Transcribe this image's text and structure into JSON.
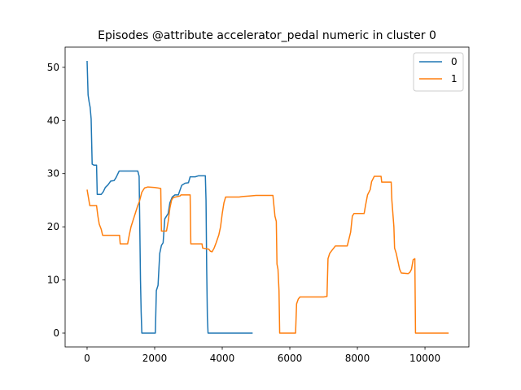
{
  "chart_data": {
    "type": "line",
    "title": "Episodes @attribute accelerator_pedal numeric in cluster 0",
    "xlabel": "",
    "ylabel": "",
    "xlim": [
      -650,
      11300
    ],
    "ylim": [
      -2.6,
      53.8
    ],
    "xticks": [
      0,
      2000,
      4000,
      6000,
      8000,
      10000
    ],
    "xtick_labels": [
      "0",
      "2000",
      "4000",
      "6000",
      "8000",
      "10000"
    ],
    "yticks": [
      0,
      10,
      20,
      30,
      40,
      50
    ],
    "ytick_labels": [
      "0",
      "10",
      "20",
      "30",
      "40",
      "50"
    ],
    "grid": false,
    "legend_position": "top-right",
    "series": [
      {
        "name": "0",
        "color": "#1f77b4",
        "points": [
          [
            0,
            51.2
          ],
          [
            30,
            44.8
          ],
          [
            60,
            43.5
          ],
          [
            90,
            42.5
          ],
          [
            120,
            40.3
          ],
          [
            150,
            31.8
          ],
          [
            200,
            31.6
          ],
          [
            280,
            31.6
          ],
          [
            300,
            26.1
          ],
          [
            420,
            26.1
          ],
          [
            480,
            26.6
          ],
          [
            540,
            27.4
          ],
          [
            620,
            27.9
          ],
          [
            700,
            28.6
          ],
          [
            800,
            28.7
          ],
          [
            860,
            29.3
          ],
          [
            950,
            30.5
          ],
          [
            1100,
            30.5
          ],
          [
            1500,
            30.5
          ],
          [
            1540,
            29.5
          ],
          [
            1560,
            20.0
          ],
          [
            1580,
            10.0
          ],
          [
            1600,
            4.0
          ],
          [
            1620,
            0
          ],
          [
            1800,
            0
          ],
          [
            2020,
            0
          ],
          [
            2050,
            8.0
          ],
          [
            2100,
            9.0
          ],
          [
            2150,
            15.0
          ],
          [
            2200,
            16.5
          ],
          [
            2250,
            17.0
          ],
          [
            2300,
            21.5
          ],
          [
            2350,
            22.0
          ],
          [
            2400,
            22.5
          ],
          [
            2450,
            24.5
          ],
          [
            2520,
            25.6
          ],
          [
            2600,
            26.0
          ],
          [
            2700,
            26.0
          ],
          [
            2800,
            27.8
          ],
          [
            2900,
            28.2
          ],
          [
            3000,
            28.3
          ],
          [
            3050,
            29.4
          ],
          [
            3200,
            29.4
          ],
          [
            3300,
            29.6
          ],
          [
            3500,
            29.6
          ],
          [
            3520,
            25.0
          ],
          [
            3540,
            12.0
          ],
          [
            3560,
            3.0
          ],
          [
            3580,
            0
          ],
          [
            4000,
            0
          ],
          [
            4500,
            0
          ],
          [
            4900,
            0
          ]
        ]
      },
      {
        "name": "1",
        "color": "#ff7f0e",
        "points": [
          [
            0,
            27.0
          ],
          [
            40,
            25.5
          ],
          [
            80,
            24.0
          ],
          [
            200,
            24.0
          ],
          [
            280,
            24.0
          ],
          [
            320,
            22.0
          ],
          [
            360,
            20.5
          ],
          [
            420,
            19.5
          ],
          [
            460,
            18.4
          ],
          [
            600,
            18.4
          ],
          [
            900,
            18.4
          ],
          [
            960,
            18.4
          ],
          [
            980,
            16.8
          ],
          [
            1200,
            16.8
          ],
          [
            1250,
            18.5
          ],
          [
            1300,
            20.0
          ],
          [
            1350,
            21.0
          ],
          [
            1400,
            22.0
          ],
          [
            1450,
            23.0
          ],
          [
            1500,
            24.0
          ],
          [
            1550,
            24.8
          ],
          [
            1620,
            26.5
          ],
          [
            1700,
            27.3
          ],
          [
            1800,
            27.5
          ],
          [
            2000,
            27.4
          ],
          [
            2100,
            27.3
          ],
          [
            2180,
            27.2
          ],
          [
            2200,
            19.2
          ],
          [
            2350,
            19.2
          ],
          [
            2400,
            21.0
          ],
          [
            2450,
            23.5
          ],
          [
            2500,
            25.0
          ],
          [
            2550,
            25.5
          ],
          [
            2750,
            25.8
          ],
          [
            2780,
            26.0
          ],
          [
            3050,
            26.0
          ],
          [
            3070,
            16.8
          ],
          [
            3400,
            16.8
          ],
          [
            3420,
            16.0
          ],
          [
            3600,
            15.8
          ],
          [
            3650,
            15.4
          ],
          [
            3700,
            15.3
          ],
          [
            3760,
            16.0
          ],
          [
            3820,
            17.0
          ],
          [
            3900,
            18.5
          ],
          [
            3950,
            20.0
          ],
          [
            4000,
            22.5
          ],
          [
            4050,
            24.5
          ],
          [
            4100,
            25.6
          ],
          [
            4500,
            25.6
          ],
          [
            4600,
            25.7
          ],
          [
            4800,
            25.8
          ],
          [
            5000,
            25.9
          ],
          [
            5500,
            25.9
          ],
          [
            5560,
            22.0
          ],
          [
            5600,
            21.0
          ],
          [
            5620,
            13.0
          ],
          [
            5650,
            12.0
          ],
          [
            5680,
            8.0
          ],
          [
            5700,
            0
          ],
          [
            6000,
            0
          ],
          [
            6170,
            0
          ],
          [
            6200,
            5.5
          ],
          [
            6250,
            6.4
          ],
          [
            6300,
            6.8
          ],
          [
            7000,
            6.8
          ],
          [
            7100,
            6.9
          ],
          [
            7130,
            14.0
          ],
          [
            7180,
            15.0
          ],
          [
            7250,
            15.6
          ],
          [
            7300,
            16.0
          ],
          [
            7350,
            16.4
          ],
          [
            7700,
            16.4
          ],
          [
            7800,
            19.0
          ],
          [
            7850,
            22.0
          ],
          [
            7900,
            22.5
          ],
          [
            8200,
            22.5
          ],
          [
            8240,
            24.0
          ],
          [
            8300,
            26.0
          ],
          [
            8380,
            27.0
          ],
          [
            8420,
            28.5
          ],
          [
            8500,
            29.5
          ],
          [
            8700,
            29.5
          ],
          [
            8720,
            28.4
          ],
          [
            9000,
            28.4
          ],
          [
            9020,
            25.0
          ],
          [
            9080,
            20.0
          ],
          [
            9100,
            16.0
          ],
          [
            9150,
            15.0
          ],
          [
            9200,
            13.5
          ],
          [
            9250,
            12.0
          ],
          [
            9300,
            11.3
          ],
          [
            9500,
            11.2
          ],
          [
            9550,
            11.4
          ],
          [
            9600,
            12.0
          ],
          [
            9650,
            13.8
          ],
          [
            9700,
            14.0
          ],
          [
            9720,
            0
          ],
          [
            10000,
            0
          ],
          [
            10700,
            0
          ]
        ]
      }
    ]
  }
}
